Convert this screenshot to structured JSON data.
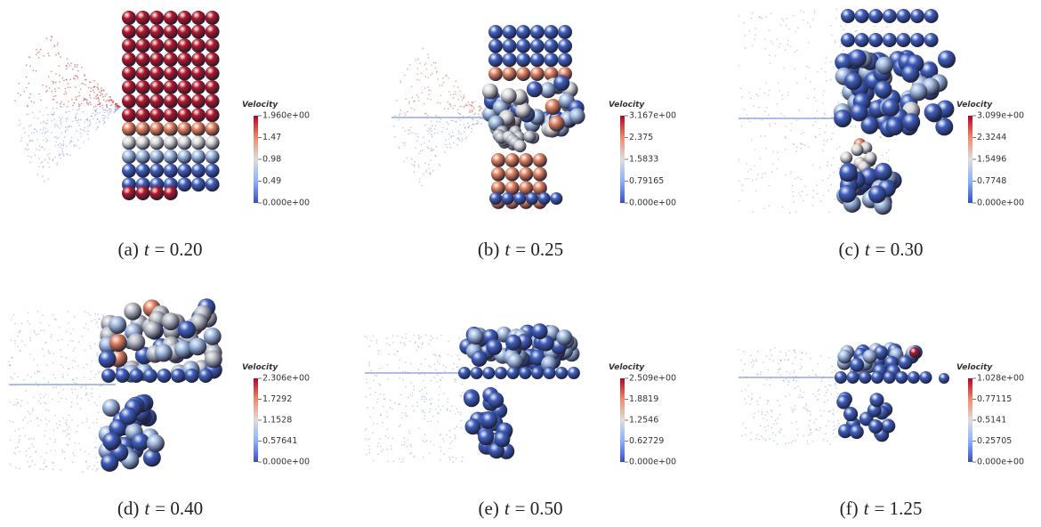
{
  "panels": [
    {
      "label": "(a)",
      "variable": "t",
      "value": "= 0.20",
      "colorbar": {
        "title": "Velocity",
        "ticks": [
          "1.960e+00",
          "1.47",
          "0.98",
          "0.49",
          "0.000e+00"
        ]
      }
    },
    {
      "label": "(b)",
      "variable": "t",
      "value": "= 0.25",
      "colorbar": {
        "title": "Velocity",
        "ticks": [
          "3.167e+00",
          "2.375",
          "1.5833",
          "0.79165",
          "0.000e+00"
        ]
      }
    },
    {
      "label": "(c)",
      "variable": "t",
      "value": "= 0.30",
      "colorbar": {
        "title": "Velocity",
        "ticks": [
          "3.099e+00",
          "2.3244",
          "1.5496",
          "0.7748",
          "0.000e+00"
        ]
      }
    },
    {
      "label": "(d)",
      "variable": "t",
      "value": "= 0.40",
      "colorbar": {
        "title": "Velocity",
        "ticks": [
          "2.306e+00",
          "1.7292",
          "1.1528",
          "0.57641",
          "0.000e+00"
        ]
      }
    },
    {
      "label": "(e)",
      "variable": "t",
      "value": "= 0.50",
      "colorbar": {
        "title": "Velocity",
        "ticks": [
          "2.509e+00",
          "1.8819",
          "1.2546",
          "0.62729",
          "0.000e+00"
        ]
      }
    },
    {
      "label": "(f)",
      "variable": "t",
      "value": "= 1.25",
      "colorbar": {
        "title": "Velocity",
        "ticks": [
          "1.028e+00",
          "0.77115",
          "0.5141",
          "0.25705",
          "0.000e+00"
        ]
      }
    }
  ]
}
